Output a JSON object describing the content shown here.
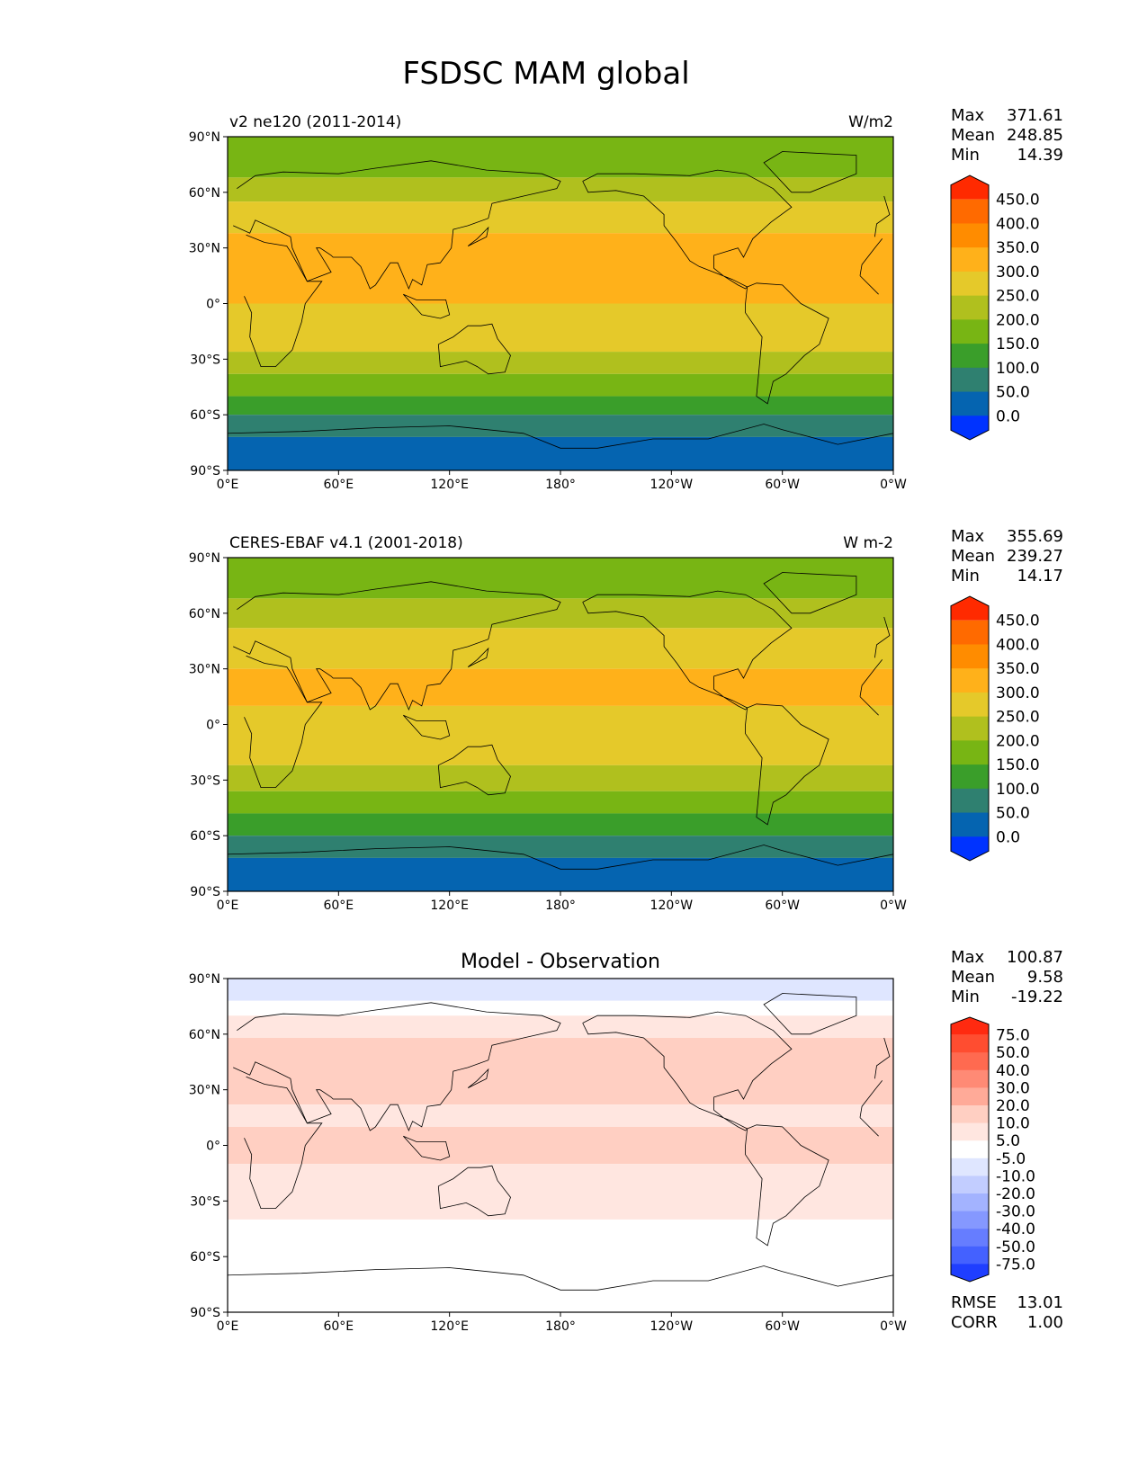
{
  "figure": {
    "title": "FSDSC MAM global"
  },
  "axes": {
    "lat_ticks": [
      "90°N",
      "60°N",
      "30°N",
      "0°",
      "30°S",
      "60°S",
      "90°S"
    ],
    "lon_ticks": [
      "0°E",
      "60°E",
      "120°E",
      "180°",
      "120°W",
      "60°W",
      "0°W"
    ]
  },
  "panels": [
    {
      "left_label": "v2 ne120 (2011-2014)",
      "center_title": "",
      "units": "W/m2",
      "stats": [
        {
          "label": "Max",
          "value": "371.61"
        },
        {
          "label": "Mean",
          "value": "248.85"
        },
        {
          "label": "Min",
          "value": "14.39"
        }
      ],
      "extra_stats": [],
      "colorbar": {
        "labels": [
          "450.0",
          "400.0",
          "350.0",
          "300.0",
          "250.0",
          "200.0",
          "150.0",
          "100.0",
          "50.0",
          "0.0"
        ],
        "colors": [
          "#ff2a00",
          "#ff6a00",
          "#ff8c00",
          "#ffb11a",
          "#e5c92a",
          "#b0c01e",
          "#78b514",
          "#3a9e2a",
          "#2f8070",
          "#0564b0",
          "#0033ff"
        ]
      },
      "bands": [
        {
          "lat_top": 90,
          "lat_bottom": 68,
          "color": "#78b514"
        },
        {
          "lat_top": 68,
          "lat_bottom": 55,
          "color": "#b0c01e"
        },
        {
          "lat_top": 55,
          "lat_bottom": 38,
          "color": "#e5c92a"
        },
        {
          "lat_top": 38,
          "lat_bottom": 0,
          "color": "#ffb11a"
        },
        {
          "lat_top": 0,
          "lat_bottom": -26,
          "color": "#e5c92a"
        },
        {
          "lat_top": -26,
          "lat_bottom": -38,
          "color": "#b0c01e"
        },
        {
          "lat_top": -38,
          "lat_bottom": -50,
          "color": "#78b514"
        },
        {
          "lat_top": -50,
          "lat_bottom": -60,
          "color": "#3a9e2a"
        },
        {
          "lat_top": -60,
          "lat_bottom": -72,
          "color": "#2f8070"
        },
        {
          "lat_top": -72,
          "lat_bottom": -90,
          "color": "#0564b0"
        }
      ]
    },
    {
      "left_label": "CERES-EBAF v4.1 (2001-2018)",
      "center_title": "",
      "units": "W m-2",
      "stats": [
        {
          "label": "Max",
          "value": "355.69"
        },
        {
          "label": "Mean",
          "value": "239.27"
        },
        {
          "label": "Min",
          "value": "14.17"
        }
      ],
      "extra_stats": [],
      "colorbar": {
        "labels": [
          "450.0",
          "400.0",
          "350.0",
          "300.0",
          "250.0",
          "200.0",
          "150.0",
          "100.0",
          "50.0",
          "0.0"
        ],
        "colors": [
          "#ff2a00",
          "#ff6a00",
          "#ff8c00",
          "#ffb11a",
          "#e5c92a",
          "#b0c01e",
          "#78b514",
          "#3a9e2a",
          "#2f8070",
          "#0564b0",
          "#0033ff"
        ]
      },
      "bands": [
        {
          "lat_top": 90,
          "lat_bottom": 68,
          "color": "#78b514"
        },
        {
          "lat_top": 68,
          "lat_bottom": 52,
          "color": "#b0c01e"
        },
        {
          "lat_top": 52,
          "lat_bottom": 30,
          "color": "#e5c92a"
        },
        {
          "lat_top": 30,
          "lat_bottom": 10,
          "color": "#ffb11a"
        },
        {
          "lat_top": 10,
          "lat_bottom": -22,
          "color": "#e5c92a"
        },
        {
          "lat_top": -22,
          "lat_bottom": -36,
          "color": "#b0c01e"
        },
        {
          "lat_top": -36,
          "lat_bottom": -48,
          "color": "#78b514"
        },
        {
          "lat_top": -48,
          "lat_bottom": -60,
          "color": "#3a9e2a"
        },
        {
          "lat_top": -60,
          "lat_bottom": -72,
          "color": "#2f8070"
        },
        {
          "lat_top": -72,
          "lat_bottom": -90,
          "color": "#0564b0"
        }
      ]
    },
    {
      "left_label": "",
      "center_title": "Model - Observation",
      "units": "",
      "stats": [
        {
          "label": "Max",
          "value": "100.87"
        },
        {
          "label": "Mean",
          "value": "9.58"
        },
        {
          "label": "Min",
          "value": "-19.22"
        }
      ],
      "extra_stats": [
        {
          "label": "RMSE",
          "value": "13.01"
        },
        {
          "label": "CORR",
          "value": "1.00"
        }
      ],
      "colorbar": {
        "labels": [
          "75.0",
          "50.0",
          "40.0",
          "30.0",
          "20.0",
          "10.0",
          "5.0",
          "-5.0",
          "-10.0",
          "-20.0",
          "-30.0",
          "-40.0",
          "-50.0",
          "-75.0"
        ],
        "colors": [
          "#ff2a10",
          "#ff4d30",
          "#ff6a50",
          "#ff8a75",
          "#ffaa98",
          "#ffcfc2",
          "#ffe6e0",
          "#ffffff",
          "#dfe6ff",
          "#c2cdff",
          "#a3b3ff",
          "#8598ff",
          "#667dff",
          "#4461ff",
          "#1f3eff"
        ]
      },
      "bands": [
        {
          "lat_top": 90,
          "lat_bottom": 78,
          "color": "#dfe6ff"
        },
        {
          "lat_top": 78,
          "lat_bottom": 70,
          "color": "#ffffff"
        },
        {
          "lat_top": 70,
          "lat_bottom": 58,
          "color": "#ffe6e0"
        },
        {
          "lat_top": 58,
          "lat_bottom": 22,
          "color": "#ffcfc2"
        },
        {
          "lat_top": 22,
          "lat_bottom": 10,
          "color": "#ffe6e0"
        },
        {
          "lat_top": 10,
          "lat_bottom": -10,
          "color": "#ffcfc2"
        },
        {
          "lat_top": -10,
          "lat_bottom": -40,
          "color": "#ffe6e0"
        },
        {
          "lat_top": -40,
          "lat_bottom": -90,
          "color": "#ffffff"
        }
      ]
    }
  ],
  "stat_panels_bottom": []
}
